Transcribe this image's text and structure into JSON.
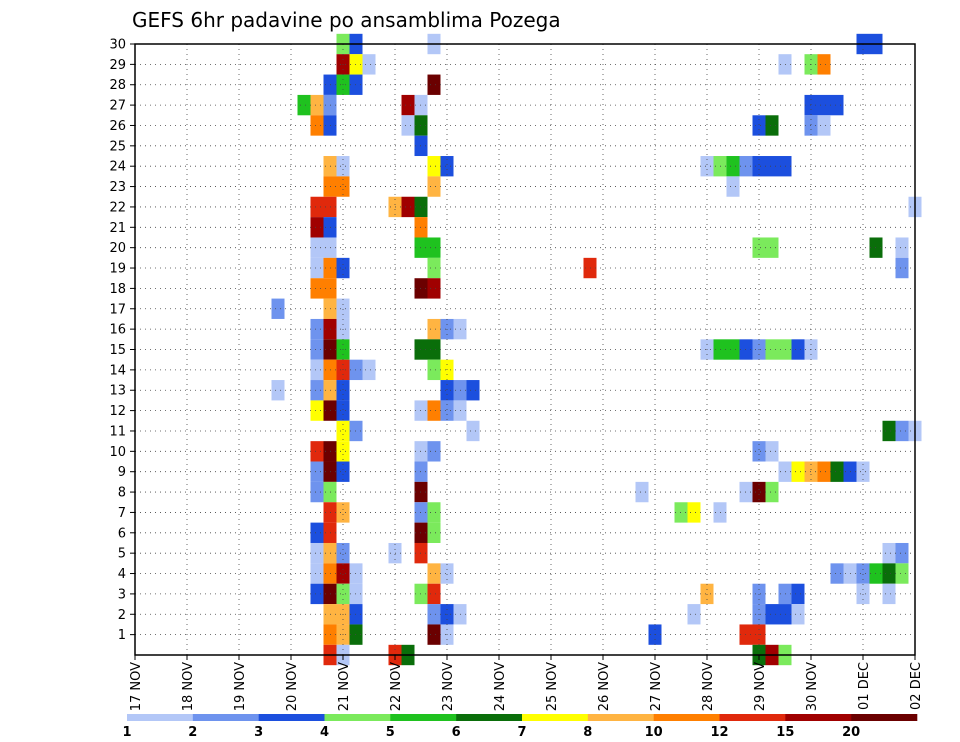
{
  "chart_data": {
    "type": "heatmap",
    "title": "GEFS 6hr padavine po ansamblima Pozega",
    "xlabel": "",
    "ylabel": "",
    "x_tick_labels": [
      "17 NOV",
      "18 NOV",
      "19 NOV",
      "20 NOV",
      "21 NOV",
      "22 NOV",
      "23 NOV",
      "24 NOV",
      "25 NOV",
      "26 NOV",
      "27 NOV",
      "28 NOV",
      "29 NOV",
      "30 NOV",
      "01 DEC",
      "02 DEC"
    ],
    "y_tick_labels": [
      "1",
      "2",
      "3",
      "4",
      "5",
      "6",
      "7",
      "8",
      "9",
      "10",
      "11",
      "12",
      "13",
      "14",
      "15",
      "16",
      "17",
      "18",
      "19",
      "20",
      "21",
      "22",
      "23",
      "24",
      "25",
      "26",
      "27",
      "28",
      "29",
      "30"
    ],
    "x_axis_unit": "6-hour steps from 17 NOV 00Z",
    "x_range": [
      0,
      60
    ],
    "y_range": [
      0,
      30
    ],
    "grid": true,
    "colorbar": {
      "colors": [
        "#b3c7f7",
        "#6e93ee",
        "#1c4fde",
        "#7bea5c",
        "#1fc21f",
        "#0a6e0a",
        "#ffff00",
        "#ffb442",
        "#ff7f00",
        "#e0290c",
        "#a00000",
        "#6b0000"
      ],
      "labels": [
        "1",
        "2",
        "3",
        "4",
        "5",
        "6",
        "7",
        "8",
        "10",
        "12",
        "15",
        "20"
      ]
    },
    "cells": [
      [
        16,
        30,
        4
      ],
      [
        17,
        30,
        3
      ],
      [
        23,
        30,
        1
      ],
      [
        56,
        30,
        3
      ],
      [
        57,
        30,
        3
      ],
      [
        16,
        29,
        11
      ],
      [
        17,
        29,
        7
      ],
      [
        18,
        29,
        1
      ],
      [
        50,
        29,
        1
      ],
      [
        52,
        29,
        4
      ],
      [
        53,
        29,
        9
      ],
      [
        15,
        28,
        3
      ],
      [
        16,
        28,
        5
      ],
      [
        17,
        28,
        3
      ],
      [
        23,
        28,
        12
      ],
      [
        13,
        27,
        5
      ],
      [
        14,
        27,
        8
      ],
      [
        15,
        27,
        2
      ],
      [
        21,
        27,
        11
      ],
      [
        22,
        27,
        1
      ],
      [
        52,
        27,
        3
      ],
      [
        53,
        27,
        3
      ],
      [
        54,
        27,
        3
      ],
      [
        14,
        26,
        9
      ],
      [
        15,
        26,
        3
      ],
      [
        21,
        26,
        1
      ],
      [
        22,
        26,
        6
      ],
      [
        48,
        26,
        3
      ],
      [
        49,
        26,
        6
      ],
      [
        52,
        26,
        2
      ],
      [
        53,
        26,
        1
      ],
      [
        22,
        25,
        3
      ],
      [
        15,
        24,
        8
      ],
      [
        16,
        24,
        1
      ],
      [
        23,
        24,
        7
      ],
      [
        24,
        24,
        3
      ],
      [
        44,
        24,
        1
      ],
      [
        45,
        24,
        4
      ],
      [
        46,
        24,
        5
      ],
      [
        47,
        24,
        2
      ],
      [
        48,
        24,
        3
      ],
      [
        49,
        24,
        3
      ],
      [
        50,
        24,
        3
      ],
      [
        15,
        23,
        9
      ],
      [
        16,
        23,
        9
      ],
      [
        23,
        23,
        8
      ],
      [
        46,
        23,
        1
      ],
      [
        14,
        22,
        10
      ],
      [
        15,
        22,
        10
      ],
      [
        20,
        22,
        8
      ],
      [
        21,
        22,
        11
      ],
      [
        22,
        22,
        6
      ],
      [
        60,
        22,
        1
      ],
      [
        14,
        21,
        11
      ],
      [
        15,
        21,
        3
      ],
      [
        22,
        21,
        9
      ],
      [
        14,
        20,
        1
      ],
      [
        15,
        20,
        1
      ],
      [
        22,
        20,
        5
      ],
      [
        23,
        20,
        5
      ],
      [
        48,
        20,
        4
      ],
      [
        49,
        20,
        4
      ],
      [
        57,
        20,
        6
      ],
      [
        59,
        20,
        1
      ],
      [
        14,
        19,
        1
      ],
      [
        15,
        19,
        9
      ],
      [
        16,
        19,
        3
      ],
      [
        23,
        19,
        4
      ],
      [
        35,
        19,
        10
      ],
      [
        59,
        19,
        2
      ],
      [
        14,
        18,
        9
      ],
      [
        15,
        18,
        9
      ],
      [
        22,
        18,
        12
      ],
      [
        23,
        18,
        11
      ],
      [
        11,
        17,
        2
      ],
      [
        15,
        17,
        8
      ],
      [
        16,
        17,
        1
      ],
      [
        14,
        16,
        2
      ],
      [
        15,
        16,
        11
      ],
      [
        16,
        16,
        1
      ],
      [
        23,
        16,
        8
      ],
      [
        24,
        16,
        2
      ],
      [
        25,
        16,
        1
      ],
      [
        14,
        15,
        2
      ],
      [
        15,
        15,
        12
      ],
      [
        16,
        15,
        5
      ],
      [
        22,
        15,
        6
      ],
      [
        23,
        15,
        6
      ],
      [
        44,
        15,
        1
      ],
      [
        45,
        15,
        5
      ],
      [
        46,
        15,
        5
      ],
      [
        47,
        15,
        3
      ],
      [
        48,
        15,
        2
      ],
      [
        49,
        15,
        4
      ],
      [
        50,
        15,
        4
      ],
      [
        51,
        15,
        3
      ],
      [
        52,
        15,
        1
      ],
      [
        14,
        14,
        1
      ],
      [
        15,
        14,
        9
      ],
      [
        16,
        14,
        10
      ],
      [
        17,
        14,
        2
      ],
      [
        18,
        14,
        1
      ],
      [
        23,
        14,
        4
      ],
      [
        24,
        14,
        7
      ],
      [
        11,
        13,
        1
      ],
      [
        14,
        13,
        2
      ],
      [
        15,
        13,
        8
      ],
      [
        16,
        13,
        3
      ],
      [
        24,
        13,
        3
      ],
      [
        25,
        13,
        2
      ],
      [
        26,
        13,
        3
      ],
      [
        14,
        12,
        7
      ],
      [
        15,
        12,
        12
      ],
      [
        16,
        12,
        3
      ],
      [
        22,
        12,
        1
      ],
      [
        23,
        12,
        9
      ],
      [
        24,
        12,
        2
      ],
      [
        25,
        12,
        1
      ],
      [
        16,
        11,
        7
      ],
      [
        17,
        11,
        2
      ],
      [
        26,
        11,
        1
      ],
      [
        58,
        11,
        6
      ],
      [
        59,
        11,
        2
      ],
      [
        60,
        11,
        1
      ],
      [
        14,
        10,
        10
      ],
      [
        15,
        10,
        12
      ],
      [
        16,
        10,
        7
      ],
      [
        22,
        10,
        1
      ],
      [
        23,
        10,
        2
      ],
      [
        48,
        10,
        2
      ],
      [
        49,
        10,
        1
      ],
      [
        14,
        9,
        2
      ],
      [
        15,
        9,
        12
      ],
      [
        16,
        9,
        3
      ],
      [
        22,
        9,
        2
      ],
      [
        50,
        9,
        1
      ],
      [
        51,
        9,
        7
      ],
      [
        52,
        9,
        8
      ],
      [
        53,
        9,
        9
      ],
      [
        54,
        9,
        6
      ],
      [
        55,
        9,
        3
      ],
      [
        56,
        9,
        1
      ],
      [
        14,
        8,
        2
      ],
      [
        15,
        8,
        4
      ],
      [
        22,
        8,
        12
      ],
      [
        39,
        8,
        1
      ],
      [
        47,
        8,
        1
      ],
      [
        48,
        8,
        12
      ],
      [
        49,
        8,
        4
      ],
      [
        15,
        7,
        10
      ],
      [
        16,
        7,
        8
      ],
      [
        22,
        7,
        2
      ],
      [
        23,
        7,
        4
      ],
      [
        42,
        7,
        4
      ],
      [
        43,
        7,
        7
      ],
      [
        45,
        7,
        1
      ],
      [
        14,
        6,
        3
      ],
      [
        15,
        6,
        10
      ],
      [
        22,
        6,
        12
      ],
      [
        23,
        6,
        4
      ],
      [
        14,
        5,
        1
      ],
      [
        15,
        5,
        8
      ],
      [
        16,
        5,
        2
      ],
      [
        20,
        5,
        1
      ],
      [
        22,
        5,
        10
      ],
      [
        58,
        5,
        1
      ],
      [
        59,
        5,
        2
      ],
      [
        14,
        4,
        1
      ],
      [
        15,
        4,
        9
      ],
      [
        16,
        4,
        11
      ],
      [
        17,
        4,
        1
      ],
      [
        23,
        4,
        8
      ],
      [
        24,
        4,
        1
      ],
      [
        54,
        4,
        2
      ],
      [
        55,
        4,
        1
      ],
      [
        56,
        4,
        2
      ],
      [
        57,
        4,
        5
      ],
      [
        58,
        4,
        6
      ],
      [
        59,
        4,
        4
      ],
      [
        14,
        3,
        3
      ],
      [
        15,
        3,
        12
      ],
      [
        16,
        3,
        4
      ],
      [
        17,
        3,
        1
      ],
      [
        22,
        3,
        4
      ],
      [
        23,
        3,
        10
      ],
      [
        44,
        3,
        8
      ],
      [
        48,
        3,
        2
      ],
      [
        50,
        3,
        2
      ],
      [
        51,
        3,
        3
      ],
      [
        56,
        3,
        1
      ],
      [
        58,
        3,
        1
      ],
      [
        15,
        2,
        8
      ],
      [
        16,
        2,
        8
      ],
      [
        17,
        2,
        3
      ],
      [
        23,
        2,
        2
      ],
      [
        24,
        2,
        3
      ],
      [
        25,
        2,
        1
      ],
      [
        43,
        2,
        1
      ],
      [
        48,
        2,
        2
      ],
      [
        49,
        2,
        3
      ],
      [
        50,
        2,
        3
      ],
      [
        51,
        2,
        1
      ],
      [
        15,
        1,
        9
      ],
      [
        16,
        1,
        8
      ],
      [
        17,
        1,
        6
      ],
      [
        23,
        1,
        12
      ],
      [
        24,
        1,
        1
      ],
      [
        40,
        1,
        3
      ],
      [
        47,
        1,
        10
      ],
      [
        48,
        1,
        10
      ],
      [
        15,
        0,
        10
      ],
      [
        16,
        0,
        1
      ],
      [
        20,
        0,
        10
      ],
      [
        21,
        0,
        6
      ],
      [
        48,
        0,
        6
      ],
      [
        49,
        0,
        11
      ],
      [
        50,
        0,
        4
      ]
    ]
  }
}
